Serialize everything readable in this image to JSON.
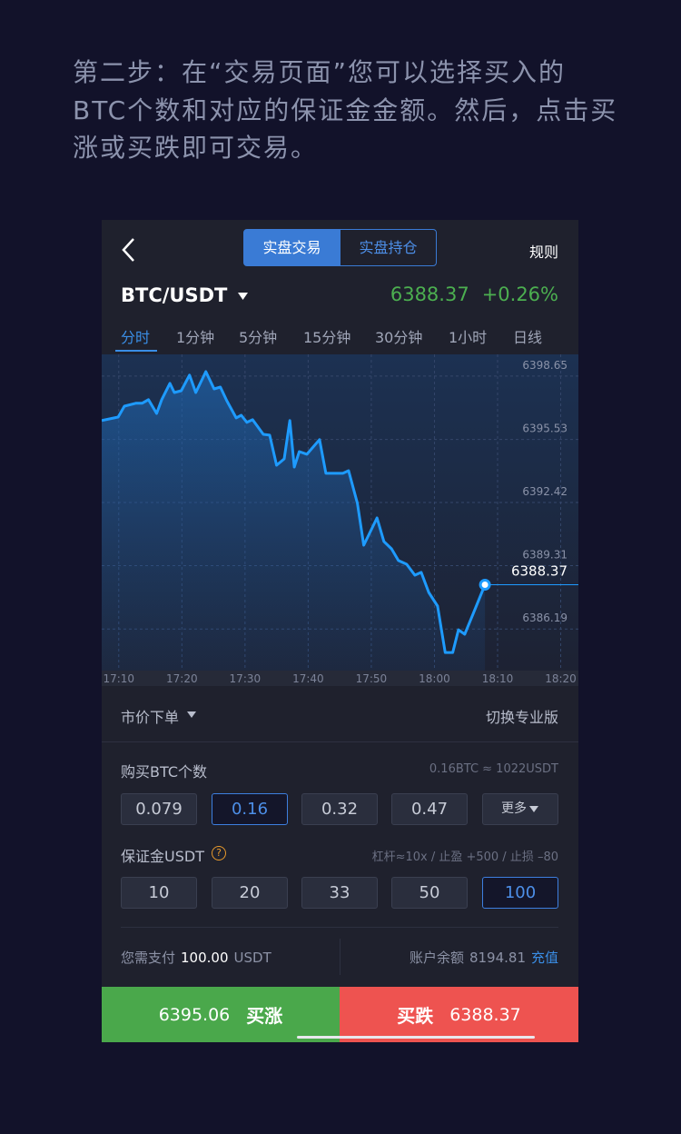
{
  "intro": {
    "lines": [
      "第二步：在“交易页面”您可以选择买入的",
      "BTC个数和对应的保证金金额。然后，点击买",
      "涨或买跌即可交易。"
    ]
  },
  "header": {
    "tabs": [
      "实盘交易",
      "实盘持仓"
    ],
    "rules": "规则"
  },
  "ticker": {
    "pair": "BTC/USDT",
    "price": 6388.37,
    "change": "+0.26%"
  },
  "periods": [
    "分时",
    "1分钟",
    "5分钟",
    "15分钟",
    "30分钟",
    "1小时",
    "日线"
  ],
  "chart_data": {
    "type": "line",
    "color": "#1e9bff",
    "grid": true,
    "x": [
      1027.3,
      1029.9,
      1030.9,
      1032.7,
      1033.7,
      1034.7,
      1036.0,
      1036.8,
      1038.1,
      1038.8,
      1039.9,
      1041.2,
      1042.2,
      1043.8,
      1045.1,
      1046.1,
      1047.1,
      1048.6,
      1049.4,
      1050.3,
      1051.2,
      1052.9,
      1053.9,
      1055.0,
      1056.2,
      1057.1,
      1057.8,
      1058.6,
      1059.8,
      1061.8,
      1062.8,
      1065.5,
      1066.4,
      1067.8,
      1068.8,
      1070.9,
      1072.0,
      1073.2,
      1074.3,
      1075.6,
      1076.9,
      1077.9,
      1079.1,
      1080.5,
      1081.7,
      1082.9,
      1083.8,
      1084.8,
      1086.1,
      1088.0
    ],
    "values": [
      6396.46,
      6396.63,
      6397.17,
      6397.31,
      6397.31,
      6397.49,
      6396.81,
      6397.49,
      6398.29,
      6397.84,
      6397.93,
      6398.7,
      6397.84,
      6398.87,
      6398.02,
      6398.11,
      6397.44,
      6396.59,
      6396.72,
      6396.37,
      6396.5,
      6395.78,
      6395.74,
      6394.26,
      6394.57,
      6396.46,
      6394.17,
      6394.93,
      6394.8,
      6395.52,
      6393.86,
      6393.86,
      6393.99,
      6392.38,
      6390.32,
      6391.66,
      6390.5,
      6390.14,
      6389.56,
      6389.38,
      6388.84,
      6388.98,
      6387.99,
      6387.32,
      6385.03,
      6385.03,
      6386.15,
      6385.93,
      6386.92,
      6388.37
    ],
    "xlim": [
      1027.3,
      1102.8
    ],
    "xticks": [
      {
        "value": 1030,
        "label": "17:10"
      },
      {
        "value": 1040,
        "label": "17:20"
      },
      {
        "value": 1050,
        "label": "17:30"
      },
      {
        "value": 1060,
        "label": "17:40"
      },
      {
        "value": 1070,
        "label": "17:50"
      },
      {
        "value": 1080,
        "label": "18:00"
      },
      {
        "value": 1090,
        "label": "18:10"
      },
      {
        "value": 1100,
        "label": "18:20"
      }
    ],
    "ylim": [
      6384.14,
      6399.72
    ],
    "yticks": [
      6386.19,
      6389.31,
      6392.42,
      6395.53,
      6398.65
    ]
  },
  "order": {
    "order_type": "市价下单",
    "pro_switch": "切换专业版",
    "quantity_label": "购买BTC个数",
    "quantity_hint": "0.16BTC ≈ 1022USDT",
    "quantity_options": [
      0.079,
      0.16,
      0.32,
      0.47
    ],
    "more": "更多",
    "margin_label": "保证金USDT",
    "help_icon": "?",
    "margin_hint": "杠杆≈10x / 止盈 +500 / 止损 –80",
    "margin_options": [
      10,
      20,
      33,
      50,
      100
    ]
  },
  "payment": {
    "pay_label": "您需支付",
    "pay_amount": "100.00",
    "pay_unit": "USDT",
    "balance_label": "账户余额",
    "balance": 8194.81,
    "recharge": "充值"
  },
  "actions": {
    "buy_up_price": 6395.06,
    "buy_up": "买涨",
    "buy_down": "买跌",
    "buy_down_price": 6388.37
  }
}
